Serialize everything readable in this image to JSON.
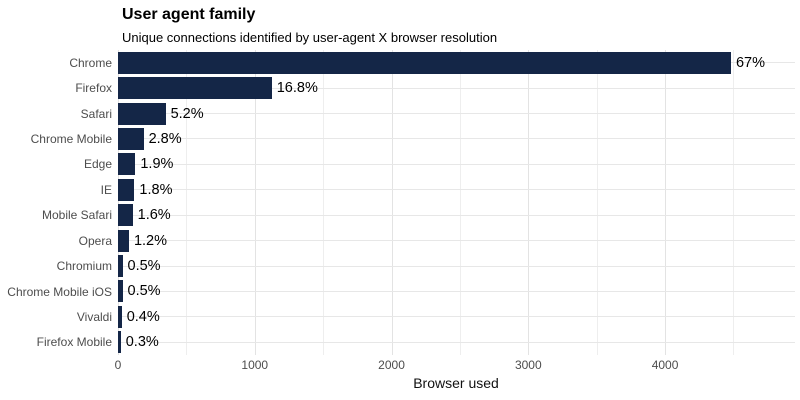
{
  "chart_data": {
    "type": "bar",
    "orientation": "horizontal",
    "title": "User agent family",
    "subtitle": "Unique connections identified by user-agent X browser resolution",
    "xlabel": "Browser used",
    "categories": [
      "Chrome",
      "Firefox",
      "Safari",
      "Chrome Mobile",
      "Edge",
      "IE",
      "Mobile Safari",
      "Opera",
      "Chromium",
      "Chrome Mobile iOS",
      "Vivaldi",
      "Firefox Mobile"
    ],
    "values": [
      4482,
      1124,
      348,
      187,
      127,
      120,
      107,
      80,
      33,
      33,
      27,
      20
    ],
    "bar_labels": [
      "67%",
      "16.8%",
      "5.2%",
      "2.8%",
      "1.9%",
      "1.8%",
      "1.6%",
      "1.2%",
      "0.5%",
      "0.5%",
      "0.4%",
      "0.3%"
    ],
    "xticks": [
      0,
      1000,
      2000,
      3000,
      4000
    ],
    "minor_gridlines": [
      500,
      1500,
      2500,
      3500,
      4500
    ],
    "xlim": [
      0,
      4950
    ],
    "grid": "on",
    "legend_position": "none",
    "colors": {
      "bar": "#142647",
      "grid_major": "#e3e3e3",
      "grid_minor": "#eeeeee",
      "axis_text": "#4d4d4d",
      "text": "#000000"
    }
  }
}
